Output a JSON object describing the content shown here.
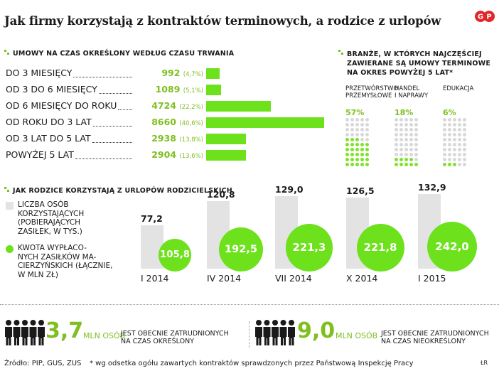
{
  "title": "Jak firmy korzystają z kontraktów terminowych, a rodzice z urlopów",
  "logo_text": "GP",
  "colors": {
    "accent": "#6de21c",
    "accent_text": "#7fbf1f",
    "gray": "#e3e3e3"
  },
  "chart_data": [
    {
      "type": "bar",
      "title": "Umowy na czas określony według czasu trwania",
      "categories": [
        "DO 3 MIESIĘCY",
        "OD 3 DO 6 MIESIĘCY",
        "OD 6 MIESIĘCY DO ROKU",
        "OD ROKU DO 3 LAT",
        "OD 3 LAT DO 5 LAT",
        "POWYŻEJ 5 LAT"
      ],
      "values": [
        992,
        1089,
        4724,
        8660,
        2938,
        2904
      ],
      "value_labels": [
        "992",
        "1089",
        "4724",
        "8660",
        "2938",
        "2904"
      ],
      "percent_labels": [
        "(4,7%)",
        "(5,1%)",
        "(22,2%)",
        "(40,6%)",
        "(13,8%)",
        "(13,6%)"
      ],
      "xlim": [
        0,
        8660
      ]
    },
    {
      "type": "waffle",
      "title": "Branże, w których najczęściej zawierane są umowy terminowe na okres powyżej 5 lat*",
      "categories": [
        "PRZETWÓRSTWO PRZEMYSŁOWE",
        "HANDEL I NAPRAWY",
        "EDUKACJA"
      ],
      "category_lines": [
        [
          "PRZETWÓRSTWO",
          "PRZEMYSŁOWE"
        ],
        [
          "HANDEL",
          "I NAPRAWY"
        ],
        [
          "EDUKACJA"
        ]
      ],
      "values": [
        57,
        18,
        6
      ],
      "value_labels": [
        "57%",
        "18%",
        "6%"
      ],
      "grid": [
        5,
        10
      ]
    },
    {
      "type": "bar",
      "title": "Jak rodzice korzystają z urlopów rodzicielskich",
      "categories": [
        "I 2014",
        "IV 2014",
        "VII 2014",
        "X 2014",
        "I 2015"
      ],
      "series": [
        {
          "name": "LICZBA OSÓB KORZYSTAJĄCYCH (POBIERAJĄCYCH ZASIŁEK, W TYS.)",
          "values": [
            77.2,
            120.8,
            129.0,
            126.5,
            132.9
          ],
          "labels": [
            "77,2",
            "120,8",
            "129,0",
            "126,5",
            "132,9"
          ]
        },
        {
          "name": "KWOTA WYPŁACONYCH ZASIŁKÓW MACIERZYŃSKICH (ŁĄCZNIE, W MLN ZŁ)",
          "values": [
            105.8,
            192.5,
            221.3,
            221.8,
            242.0
          ],
          "labels": [
            "105,8",
            "192,5",
            "221,3",
            "221,8",
            "242,0"
          ]
        }
      ],
      "legend": "left"
    }
  ],
  "legend_lines": {
    "gray": [
      "LICZBA OSÓB",
      "KORZYSTAJĄCYCH",
      "(POBIERAJĄCYCH",
      "ZASIŁEK, W TYS.)"
    ],
    "green": [
      "KWOTA WYPŁACO-",
      "NYCH ZASIŁKÓW MA-",
      "CIERZYŃSKICH (ŁĄCZNIE,",
      "W MLN ZŁ)"
    ]
  },
  "stats": [
    {
      "value": "3,7",
      "unit": "MLN OSÓB",
      "text": [
        "JEST OBECNIE ZATRUDNIONYCH",
        "NA CZAS OKREŚLONY"
      ],
      "icon": "people-icon"
    },
    {
      "value": "9,0",
      "unit": "MLN OSÓB",
      "text": [
        "JEST OBECNIE ZATRUDNIONYCH",
        "NA CZAS NIEOKREŚLONY"
      ],
      "icon": "people-icon"
    }
  ],
  "footer": {
    "source": "Źródło: PIP, GUS, ZUS",
    "note": "* wg odsetka ogółu zawartych kontraktów sprawdzonych przez Państwową Inspekcję Pracy",
    "author": "ŁR"
  }
}
